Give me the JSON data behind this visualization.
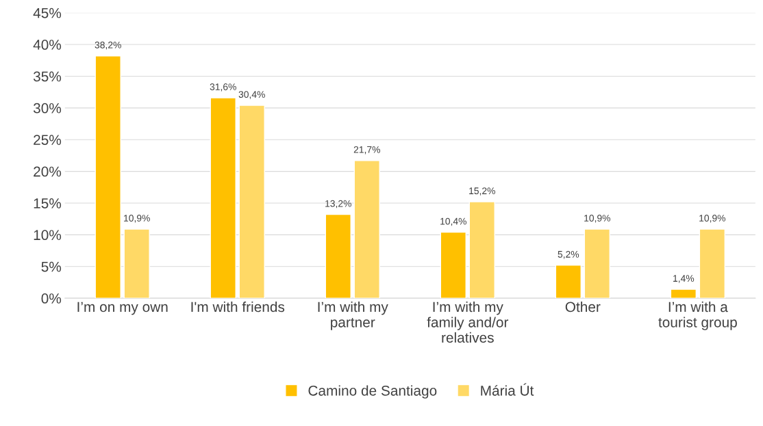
{
  "chart_data": {
    "type": "bar",
    "categories": [
      "I’m on my own",
      "I'm with friends",
      "I’m with my partner",
      "I’m with my family and/or relatives",
      "Other",
      "I’m with a tourist group"
    ],
    "series": [
      {
        "name": "Camino de Santiago",
        "color": "#ffc000",
        "values": [
          38.2,
          31.6,
          13.2,
          10.4,
          5.2,
          1.4
        ],
        "value_labels": [
          "38,2%",
          "31,6%",
          "13,2%",
          "10,4%",
          "5,2%",
          "1,4%"
        ]
      },
      {
        "name": "Mária Út",
        "color": "#ffd966",
        "values": [
          10.9,
          30.4,
          21.7,
          15.2,
          10.9,
          10.9
        ],
        "value_labels": [
          "10,9%",
          "30,4%",
          "21,7%",
          "15,2%",
          "10,9%",
          "10,9%"
        ]
      }
    ],
    "ylim": [
      0,
      45
    ],
    "yticks": [
      {
        "value": 0,
        "label": "0%"
      },
      {
        "value": 5,
        "label": "5%"
      },
      {
        "value": 10,
        "label": "10%"
      },
      {
        "value": 15,
        "label": "15%"
      },
      {
        "value": 20,
        "label": "20%"
      },
      {
        "value": 25,
        "label": "25%"
      },
      {
        "value": 30,
        "label": "30%"
      },
      {
        "value": 35,
        "label": "35%"
      },
      {
        "value": 40,
        "label": "40%"
      },
      {
        "value": 45,
        "label": "45%"
      }
    ],
    "grid": "y",
    "legend": "bottom"
  }
}
